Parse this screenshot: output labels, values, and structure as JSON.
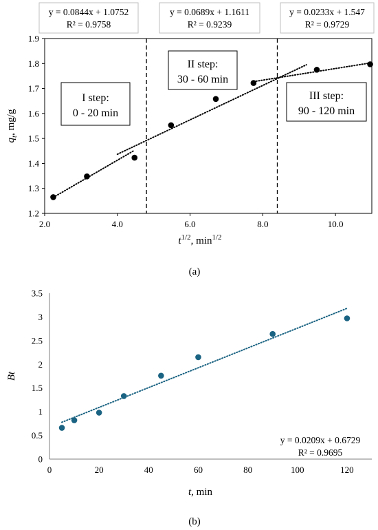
{
  "chart_data": [
    {
      "id": "a",
      "type": "scatter",
      "caption": "(a)",
      "ylabel": "qt, mg/g",
      "ylabel_parts": {
        "symbol": "q",
        "sub": "t",
        "unit": ", mg/g"
      },
      "xlabel_parts": {
        "symbol": "t",
        "sup": "1/2",
        "unit": ", min",
        "unit_sup": "1/2"
      },
      "xlim": [
        2.0,
        11.0
      ],
      "ylim": [
        1.2,
        1.9
      ],
      "xticks": [
        "2.0",
        "4.0",
        "6.0",
        "8.0",
        "10.0"
      ],
      "xtick_values": [
        2,
        4,
        6,
        8,
        10
      ],
      "yticks": [
        "1.2",
        "1.3",
        "1.4",
        "1.5",
        "1.6",
        "1.7",
        "1.8",
        "1.9"
      ],
      "ytick_values": [
        1.2,
        1.3,
        1.4,
        1.5,
        1.6,
        1.7,
        1.8,
        1.9
      ],
      "marker_color": "#000000",
      "points": [
        {
          "x": 2.236,
          "y": 1.265
        },
        {
          "x": 3.162,
          "y": 1.348
        },
        {
          "x": 4.472,
          "y": 1.423
        },
        {
          "x": 5.477,
          "y": 1.553
        },
        {
          "x": 6.708,
          "y": 1.658
        },
        {
          "x": 7.746,
          "y": 1.722
        },
        {
          "x": 9.487,
          "y": 1.775
        },
        {
          "x": 10.954,
          "y": 1.797
        }
      ],
      "trendlines": [
        {
          "slope": 0.0844,
          "intercept": 1.0752,
          "x_range": [
            2.236,
            4.472
          ]
        },
        {
          "slope": 0.0689,
          "intercept": 1.1611,
          "x_range": [
            4.0,
            9.2
          ]
        },
        {
          "slope": 0.0233,
          "intercept": 1.547,
          "x_range": [
            7.746,
            10.954
          ]
        }
      ],
      "dividers": [
        4.8,
        8.4
      ],
      "equations": [
        {
          "eq": "y = 0.0844x + 1.0752",
          "r2": "R² = 0.9758"
        },
        {
          "eq": "y = 0.0689x + 1.1611",
          "r2": "R² = 0.9239"
        },
        {
          "eq": "y = 0.0233x + 1.547",
          "r2": "R² = 0.9729"
        }
      ],
      "steps": [
        {
          "name": "I step:",
          "range": "0 - 20 min"
        },
        {
          "name": "II step:",
          "range": "30 - 60 min"
        },
        {
          "name": "III step:",
          "range": "90 - 120 min"
        }
      ]
    },
    {
      "id": "b",
      "type": "scatter",
      "caption": "(b)",
      "ylabel": "Bt",
      "xlabel_parts": {
        "symbol": "t",
        "unit": ", min"
      },
      "xlim": [
        0,
        130
      ],
      "ylim": [
        0,
        3.5
      ],
      "xticks": [
        "0",
        "20",
        "40",
        "60",
        "80",
        "100",
        "120"
      ],
      "xtick_values": [
        0,
        20,
        40,
        60,
        80,
        100,
        120
      ],
      "yticks": [
        "0",
        "0.5",
        "1",
        "1.5",
        "2",
        "2.5",
        "3",
        "3.5"
      ],
      "ytick_values": [
        0,
        0.5,
        1,
        1.5,
        2,
        2.5,
        3,
        3.5
      ],
      "marker_color": "#1a6382",
      "points": [
        {
          "x": 5,
          "y": 0.66
        },
        {
          "x": 10,
          "y": 0.82
        },
        {
          "x": 20,
          "y": 0.98
        },
        {
          "x": 30,
          "y": 1.33
        },
        {
          "x": 45,
          "y": 1.76
        },
        {
          "x": 60,
          "y": 2.15
        },
        {
          "x": 90,
          "y": 2.64
        },
        {
          "x": 120,
          "y": 2.97
        }
      ],
      "trendline": {
        "slope": 0.0209,
        "intercept": 0.6729,
        "x_range": [
          5,
          120
        ],
        "color": "#1a6382"
      },
      "equation": {
        "eq": "y = 0.0209x + 0.6729",
        "r2": "R² = 0.9695"
      }
    }
  ]
}
